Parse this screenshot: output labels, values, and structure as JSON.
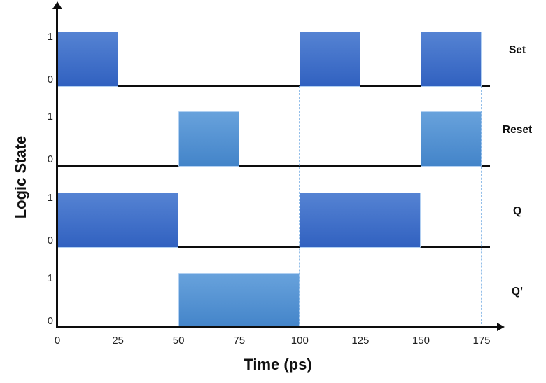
{
  "figure": {
    "ylabel": "Logic State",
    "xlabel": "Time (ps)"
  },
  "chart_data": {
    "type": "area",
    "subtype": "digital-timing-diagram",
    "title": "",
    "xlabel": "Time (ps)",
    "ylabel": "Logic State",
    "x_range": [
      0,
      175
    ],
    "x_ticks": [
      0,
      25,
      50,
      75,
      100,
      125,
      150,
      175
    ],
    "row_tick_labels": [
      "1",
      "0"
    ],
    "grid": "dashed-vertical-at-25ps-intervals",
    "legend_position": "right-of-each-row",
    "signals": [
      {
        "name": "Set",
        "palette": "dark",
        "pulses": [
          [
            0,
            25
          ],
          [
            100,
            125
          ],
          [
            150,
            175
          ]
        ],
        "levels_note": "logic 1 during pulses, else 0"
      },
      {
        "name": "Reset",
        "palette": "light",
        "pulses": [
          [
            50,
            75
          ],
          [
            150,
            175
          ]
        ]
      },
      {
        "name": "Q",
        "palette": "dark",
        "pulses": [
          [
            0,
            50
          ],
          [
            100,
            150
          ]
        ]
      },
      {
        "name": "Q’",
        "palette": "light",
        "pulses": [
          [
            50,
            100
          ]
        ]
      }
    ],
    "colors": {
      "dark_top": "#5583d3",
      "dark_bottom": "#3161c0",
      "light_top": "#68a2dc",
      "light_bottom": "#4384c9",
      "gridline": "#74ace3",
      "axis": "#0d0d0d",
      "text": "#1f1f1f"
    }
  }
}
